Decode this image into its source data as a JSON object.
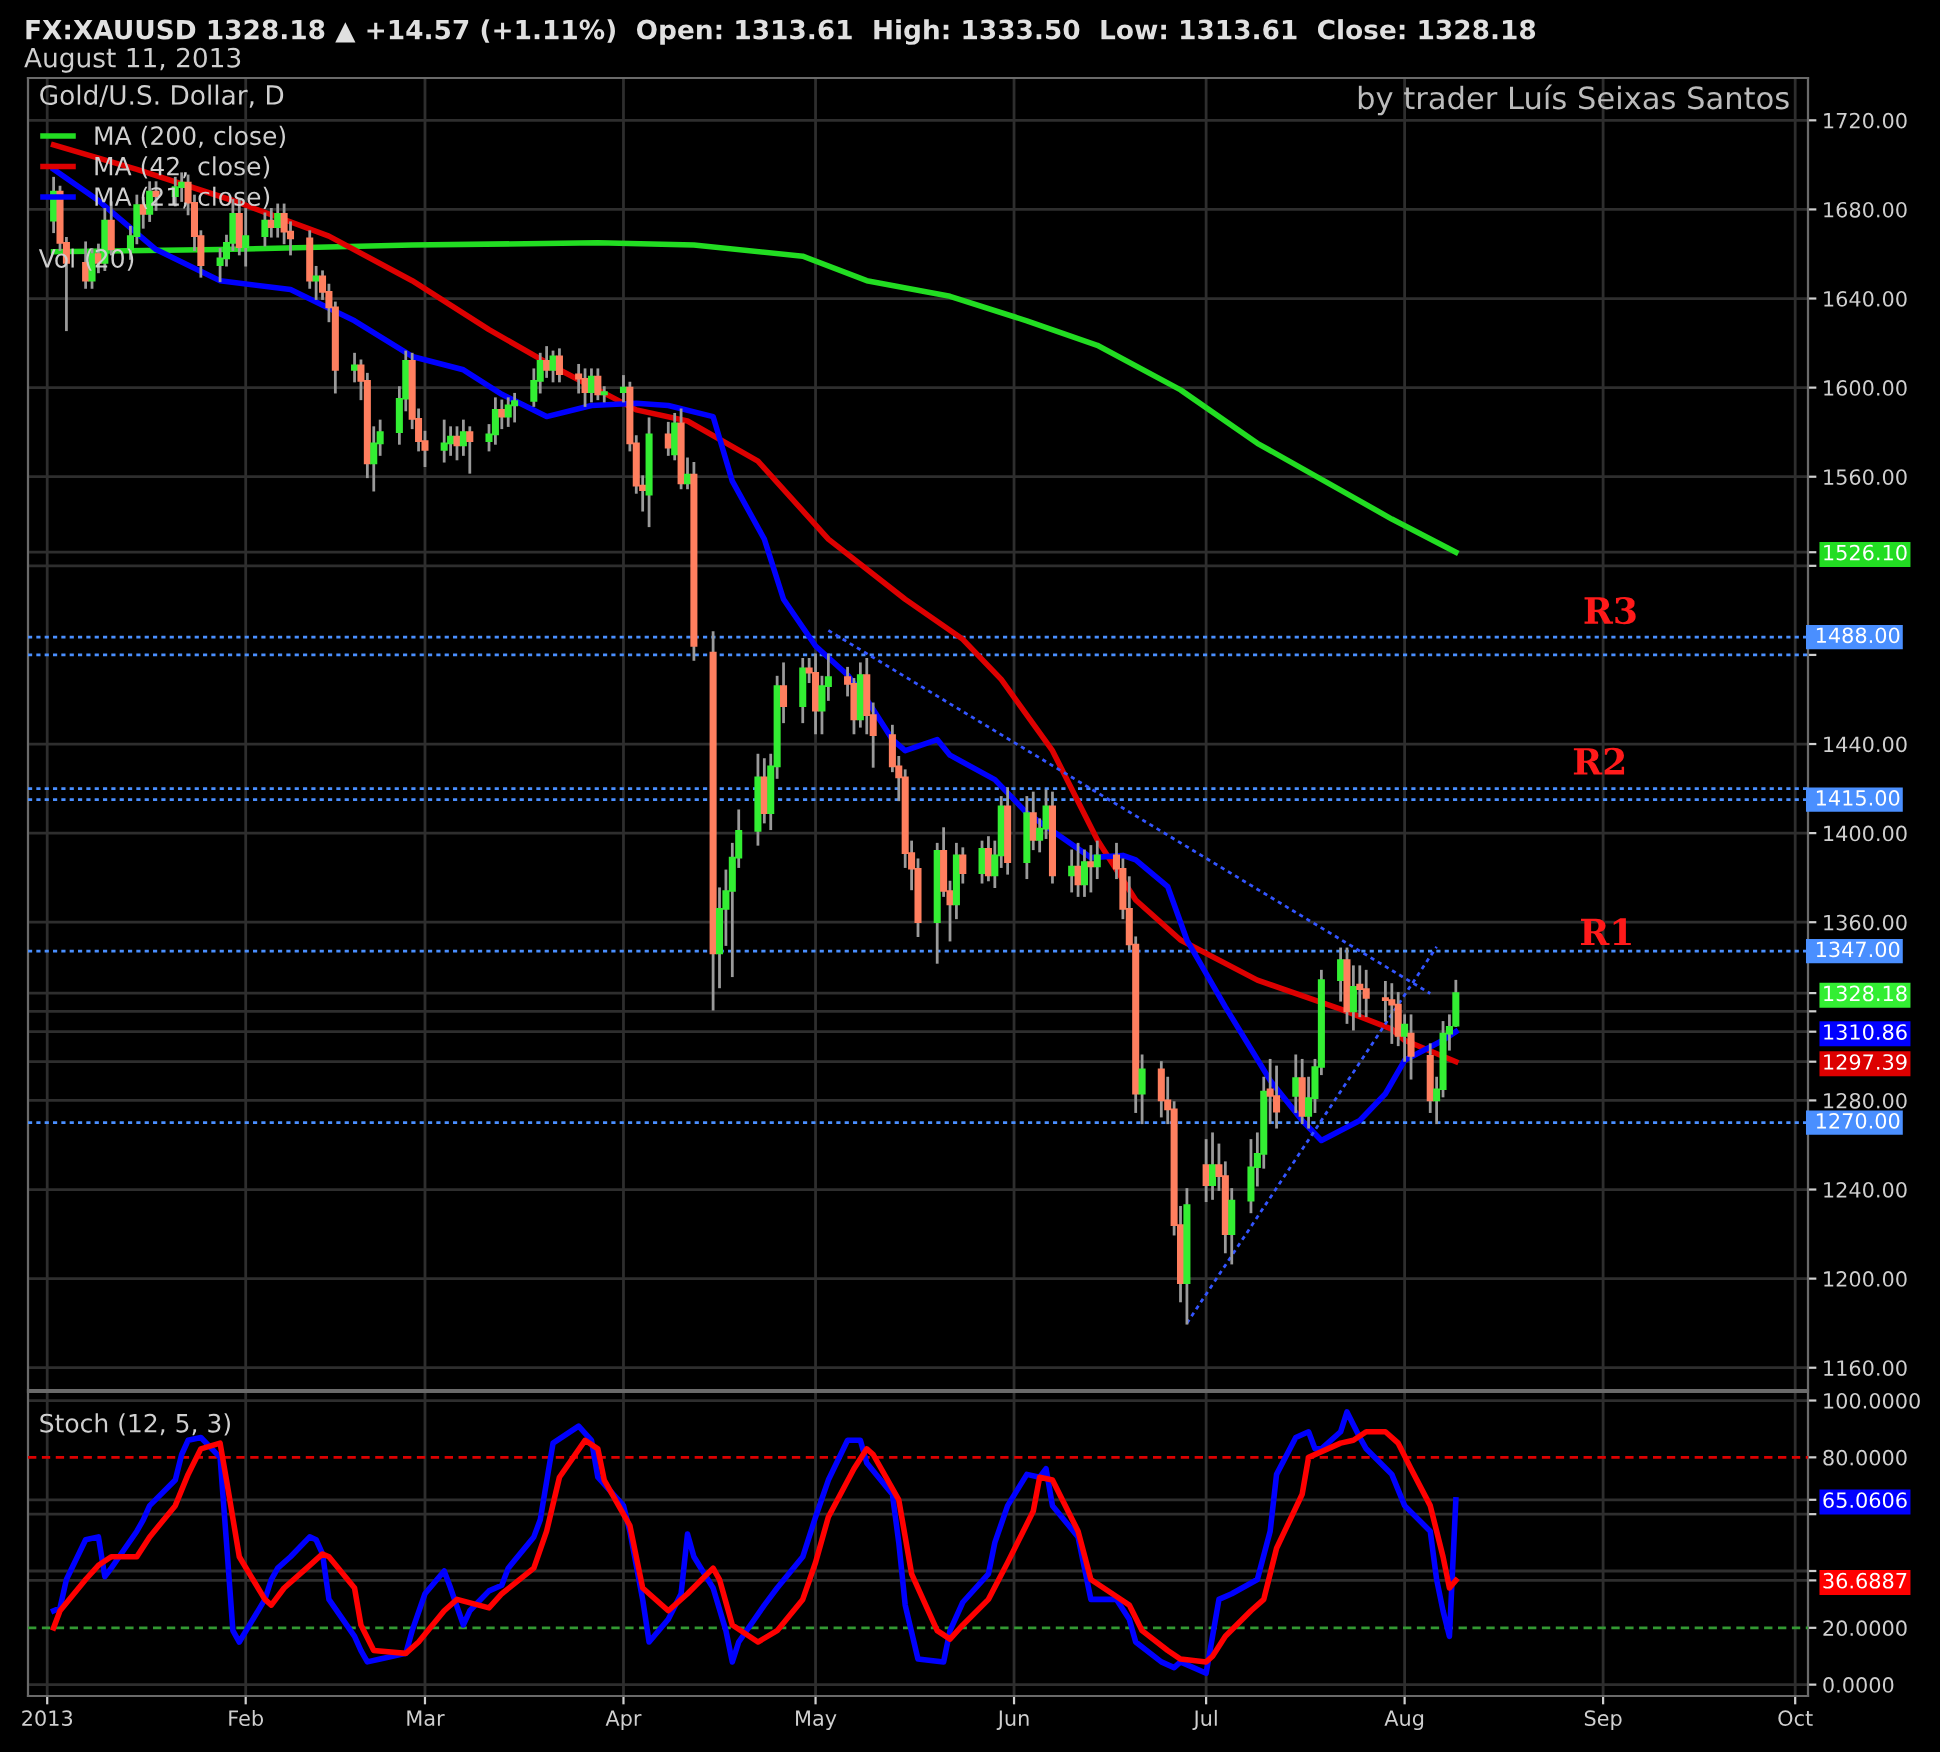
{
  "chart_data": [
    {
      "type": "candlestick",
      "title": "FX:XAUUSD 1328.18 ▲ +14.57 (+1.11%)  Open: 1313.61  High: 1333.50  Low: 1313.61  Close: 1328.18",
      "subtitle": "August 11, 2013",
      "annotations": [
        "Gold/U.S. Dollar, D",
        "by trader Luís Seixas Santos",
        "Vol (20)",
        "R3",
        "R2",
        "R1"
      ],
      "x": [
        "2013-01-02",
        "2013-01-03",
        "2013-01-04",
        "2013-01-07",
        "2013-01-08",
        "2013-01-09",
        "2013-01-10",
        "2013-01-11",
        "2013-01-14",
        "2013-01-15",
        "2013-01-16",
        "2013-01-17",
        "2013-01-18",
        "2013-01-21",
        "2013-01-22",
        "2013-01-23",
        "2013-01-24",
        "2013-01-25",
        "2013-01-28",
        "2013-01-29",
        "2013-01-30",
        "2013-01-31",
        "2013-02-01",
        "2013-02-04",
        "2013-02-05",
        "2013-02-06",
        "2013-02-07",
        "2013-02-08",
        "2013-02-11",
        "2013-02-12",
        "2013-02-13",
        "2013-02-14",
        "2013-02-15",
        "2013-02-18",
        "2013-02-19",
        "2013-02-20",
        "2013-02-21",
        "2013-02-22",
        "2013-02-25",
        "2013-02-26",
        "2013-02-27",
        "2013-02-28",
        "2013-03-01",
        "2013-03-04",
        "2013-03-05",
        "2013-03-06",
        "2013-03-07",
        "2013-03-08",
        "2013-03-11",
        "2013-03-12",
        "2013-03-13",
        "2013-03-14",
        "2013-03-15",
        "2013-03-18",
        "2013-03-19",
        "2013-03-20",
        "2013-03-21",
        "2013-03-22",
        "2013-03-25",
        "2013-03-26",
        "2013-03-27",
        "2013-03-28",
        "2013-03-29",
        "2013-04-01",
        "2013-04-02",
        "2013-04-03",
        "2013-04-04",
        "2013-04-05",
        "2013-04-08",
        "2013-04-09",
        "2013-04-10",
        "2013-04-11",
        "2013-04-12",
        "2013-04-15",
        "2013-04-16",
        "2013-04-17",
        "2013-04-18",
        "2013-04-19",
        "2013-04-22",
        "2013-04-23",
        "2013-04-24",
        "2013-04-25",
        "2013-04-26",
        "2013-04-29",
        "2013-04-30",
        "2013-05-01",
        "2013-05-02",
        "2013-05-03",
        "2013-05-06",
        "2013-05-07",
        "2013-05-08",
        "2013-05-09",
        "2013-05-10",
        "2013-05-13",
        "2013-05-14",
        "2013-05-15",
        "2013-05-16",
        "2013-05-17",
        "2013-05-20",
        "2013-05-21",
        "2013-05-22",
        "2013-05-23",
        "2013-05-24",
        "2013-05-27",
        "2013-05-28",
        "2013-05-29",
        "2013-05-30",
        "2013-05-31",
        "2013-06-03",
        "2013-06-04",
        "2013-06-05",
        "2013-06-06",
        "2013-06-07",
        "2013-06-10",
        "2013-06-11",
        "2013-06-12",
        "2013-06-13",
        "2013-06-14",
        "2013-06-17",
        "2013-06-18",
        "2013-06-19",
        "2013-06-20",
        "2013-06-21",
        "2013-06-24",
        "2013-06-25",
        "2013-06-26",
        "2013-06-27",
        "2013-06-28",
        "2013-07-01",
        "2013-07-02",
        "2013-07-03",
        "2013-07-04",
        "2013-07-05",
        "2013-07-08",
        "2013-07-09",
        "2013-07-10",
        "2013-07-11",
        "2013-07-12",
        "2013-07-15",
        "2013-07-16",
        "2013-07-17",
        "2013-07-18",
        "2013-07-19",
        "2013-07-22",
        "2013-07-23",
        "2013-07-24",
        "2013-07-25",
        "2013-07-26",
        "2013-07-29",
        "2013-07-30",
        "2013-07-31",
        "2013-08-01",
        "2013-08-02",
        "2013-08-05",
        "2013-08-06",
        "2013-08-07",
        "2013-08-08",
        "2013-08-09"
      ],
      "ohlc": [
        [
          1675,
          1694,
          1670,
          1688
        ],
        [
          1688,
          1690,
          1662,
          1665
        ],
        [
          1665,
          1667,
          1626,
          1656
        ],
        [
          1656,
          1665,
          1645,
          1648
        ],
        [
          1648,
          1662,
          1645,
          1660
        ],
        [
          1660,
          1664,
          1652,
          1656
        ],
        [
          1656,
          1680,
          1653,
          1675
        ],
        [
          1675,
          1683,
          1660,
          1662
        ],
        [
          1662,
          1672,
          1658,
          1668
        ],
        [
          1668,
          1686,
          1665,
          1682
        ],
        [
          1682,
          1685,
          1672,
          1678
        ],
        [
          1678,
          1692,
          1675,
          1688
        ],
        [
          1688,
          1692,
          1680,
          1686
        ],
        [
          1686,
          1694,
          1682,
          1690
        ],
        [
          1690,
          1696,
          1684,
          1692
        ],
        [
          1692,
          1695,
          1678,
          1683
        ],
        [
          1683,
          1686,
          1662,
          1668
        ],
        [
          1668,
          1670,
          1650,
          1655
        ],
        [
          1655,
          1662,
          1648,
          1658
        ],
        [
          1658,
          1668,
          1655,
          1665
        ],
        [
          1665,
          1684,
          1662,
          1678
        ],
        [
          1678,
          1684,
          1660,
          1663
        ],
        [
          1663,
          1680,
          1655,
          1668
        ],
        [
          1668,
          1678,
          1664,
          1675
        ],
        [
          1675,
          1680,
          1668,
          1672
        ],
        [
          1672,
          1682,
          1668,
          1678
        ],
        [
          1678,
          1682,
          1665,
          1670
        ],
        [
          1670,
          1674,
          1660,
          1667
        ],
        [
          1667,
          1670,
          1645,
          1648
        ],
        [
          1648,
          1654,
          1640,
          1650
        ],
        [
          1650,
          1652,
          1640,
          1643
        ],
        [
          1643,
          1646,
          1630,
          1636
        ],
        [
          1636,
          1638,
          1598,
          1608
        ],
        [
          1608,
          1615,
          1603,
          1610
        ],
        [
          1610,
          1612,
          1595,
          1603
        ],
        [
          1603,
          1606,
          1560,
          1566
        ],
        [
          1566,
          1582,
          1554,
          1575
        ],
        [
          1575,
          1585,
          1570,
          1580
        ],
        [
          1580,
          1600,
          1575,
          1595
        ],
        [
          1595,
          1616,
          1590,
          1612
        ],
        [
          1612,
          1615,
          1582,
          1586
        ],
        [
          1586,
          1590,
          1572,
          1576
        ],
        [
          1576,
          1580,
          1565,
          1572
        ],
        [
          1572,
          1585,
          1567,
          1575
        ],
        [
          1575,
          1582,
          1570,
          1578
        ],
        [
          1578,
          1582,
          1568,
          1574
        ],
        [
          1574,
          1585,
          1570,
          1580
        ],
        [
          1580,
          1582,
          1562,
          1576
        ],
        [
          1576,
          1583,
          1572,
          1579
        ],
        [
          1579,
          1595,
          1575,
          1590
        ],
        [
          1590,
          1594,
          1582,
          1587
        ],
        [
          1587,
          1595,
          1583,
          1592
        ],
        [
          1592,
          1597,
          1585,
          1594
        ],
        [
          1594,
          1608,
          1592,
          1603
        ],
        [
          1603,
          1615,
          1598,
          1612
        ],
        [
          1612,
          1618,
          1605,
          1608
        ],
        [
          1608,
          1616,
          1603,
          1614
        ],
        [
          1614,
          1617,
          1603,
          1606
        ],
        [
          1606,
          1610,
          1598,
          1604
        ],
        [
          1604,
          1608,
          1592,
          1598
        ],
        [
          1598,
          1608,
          1594,
          1605
        ],
        [
          1605,
          1608,
          1595,
          1597
        ],
        [
          1597,
          1600,
          1594,
          1598
        ],
        [
          1598,
          1605,
          1594,
          1600
        ],
        [
          1600,
          1602,
          1572,
          1575
        ],
        [
          1575,
          1578,
          1553,
          1556
        ],
        [
          1556,
          1560,
          1545,
          1554
        ],
        [
          1552,
          1586,
          1538,
          1579
        ],
        [
          1579,
          1584,
          1570,
          1573
        ],
        [
          1570,
          1588,
          1568,
          1584
        ],
        [
          1584,
          1590,
          1555,
          1557
        ],
        [
          1557,
          1568,
          1555,
          1561
        ],
        [
          1561,
          1566,
          1478,
          1484
        ],
        [
          1481,
          1490,
          1321,
          1346
        ],
        [
          1346,
          1375,
          1331,
          1366
        ],
        [
          1366,
          1383,
          1350,
          1374
        ],
        [
          1374,
          1395,
          1336,
          1389
        ],
        [
          1389,
          1410,
          1385,
          1401
        ],
        [
          1401,
          1435,
          1395,
          1425
        ],
        [
          1425,
          1433,
          1405,
          1409
        ],
        [
          1409,
          1435,
          1402,
          1430
        ],
        [
          1430,
          1470,
          1425,
          1466
        ],
        [
          1466,
          1476,
          1450,
          1457
        ],
        [
          1457,
          1478,
          1450,
          1474
        ],
        [
          1474,
          1478,
          1468,
          1472
        ],
        [
          1472,
          1480,
          1445,
          1455
        ],
        [
          1455,
          1470,
          1445,
          1466
        ],
        [
          1466,
          1480,
          1460,
          1470
        ],
        [
          1470,
          1474,
          1462,
          1467
        ],
        [
          1467,
          1469,
          1445,
          1451
        ],
        [
          1451,
          1476,
          1448,
          1471
        ],
        [
          1471,
          1478,
          1445,
          1453
        ],
        [
          1453,
          1458,
          1430,
          1444
        ],
        [
          1444,
          1448,
          1428,
          1430
        ],
        [
          1430,
          1434,
          1415,
          1425
        ],
        [
          1425,
          1428,
          1385,
          1391
        ],
        [
          1391,
          1396,
          1375,
          1384
        ],
        [
          1384,
          1388,
          1354,
          1360
        ],
        [
          1360,
          1395,
          1342,
          1392
        ],
        [
          1392,
          1402,
          1372,
          1374
        ],
        [
          1374,
          1378,
          1352,
          1368
        ],
        [
          1368,
          1395,
          1362,
          1390
        ],
        [
          1390,
          1393,
          1378,
          1382
        ],
        [
          1382,
          1396,
          1378,
          1393
        ],
        [
          1393,
          1398,
          1379,
          1381
        ],
        [
          1381,
          1396,
          1376,
          1390
        ],
        [
          1390,
          1416,
          1385,
          1412
        ],
        [
          1412,
          1420,
          1382,
          1387
        ],
        [
          1387,
          1416,
          1380,
          1409
        ],
        [
          1409,
          1418,
          1393,
          1397
        ],
        [
          1397,
          1406,
          1392,
          1402
        ],
        [
          1402,
          1419,
          1398,
          1412
        ],
        [
          1412,
          1418,
          1378,
          1381
        ],
        [
          1381,
          1392,
          1374,
          1385
        ],
        [
          1385,
          1395,
          1372,
          1377
        ],
        [
          1377,
          1392,
          1372,
          1387
        ],
        [
          1387,
          1394,
          1374,
          1385
        ],
        [
          1385,
          1396,
          1380,
          1390
        ],
        [
          1390,
          1395,
          1380,
          1384
        ],
        [
          1384,
          1388,
          1362,
          1366
        ],
        [
          1366,
          1380,
          1348,
          1350
        ],
        [
          1350,
          1353,
          1275,
          1283
        ],
        [
          1283,
          1300,
          1270,
          1294
        ],
        [
          1294,
          1297,
          1273,
          1280
        ],
        [
          1280,
          1290,
          1270,
          1276
        ],
        [
          1276,
          1279,
          1220,
          1224
        ],
        [
          1224,
          1232,
          1190,
          1198
        ],
        [
          1198,
          1240,
          1180,
          1233
        ],
        [
          1251,
          1262,
          1235,
          1242
        ],
        [
          1242,
          1265,
          1236,
          1251
        ],
        [
          1251,
          1260,
          1240,
          1246
        ],
        [
          1246,
          1252,
          1212,
          1220
        ],
        [
          1220,
          1240,
          1207,
          1235
        ],
        [
          1235,
          1262,
          1230,
          1250
        ],
        [
          1250,
          1265,
          1242,
          1256
        ],
        [
          1256,
          1290,
          1250,
          1284
        ],
        [
          1285,
          1298,
          1270,
          1282
        ],
        [
          1282,
          1295,
          1268,
          1275
        ],
        [
          1282,
          1300,
          1275,
          1290
        ],
        [
          1290,
          1298,
          1270,
          1273
        ],
        [
          1273,
          1290,
          1268,
          1281
        ],
        [
          1281,
          1298,
          1275,
          1295
        ],
        [
          1295,
          1338,
          1292,
          1334
        ],
        [
          1334,
          1348,
          1325,
          1343
        ],
        [
          1343,
          1348,
          1315,
          1320
        ],
        [
          1320,
          1340,
          1312,
          1331
        ],
        [
          1332,
          1340,
          1318,
          1330
        ],
        [
          1330,
          1338,
          1318,
          1326
        ],
        [
          1326,
          1333,
          1316,
          1325
        ],
        [
          1325,
          1332,
          1306,
          1323
        ],
        [
          1323,
          1328,
          1305,
          1309
        ],
        [
          1309,
          1318,
          1298,
          1314
        ],
        [
          1310,
          1318,
          1290,
          1300
        ],
        [
          1300,
          1305,
          1275,
          1280
        ],
        [
          1280,
          1290,
          1270,
          1285
        ],
        [
          1285,
          1315,
          1282,
          1310
        ],
        [
          1310,
          1318,
          1303,
          1313
        ],
        [
          1313.61,
          1333.5,
          1313.61,
          1328.18
        ]
      ],
      "colors": [
        "#33ee33",
        "#ff7f5f",
        "#ff7f5f",
        "#ff7f5f",
        "#33ee33",
        "#ff7f5f",
        "#33ee33",
        "#ff7f5f",
        "#33ee33",
        "#33ee33",
        "#ff7f5f",
        "#33ee33",
        "#ff7f5f",
        "#33ee33",
        "#33ee33",
        "#ff7f5f",
        "#ff7f5f",
        "#ff7f5f",
        "#33ee33",
        "#33ee33",
        "#33ee33",
        "#ff7f5f",
        "#33ee33",
        "#33ee33",
        "#ff7f5f",
        "#33ee33",
        "#ff7f5f",
        "#ff7f5f",
        "#ff7f5f",
        "#33ee33",
        "#ff7f5f",
        "#ff7f5f",
        "#ff7f5f",
        "#33ee33",
        "#ff7f5f",
        "#ff7f5f",
        "#33ee33",
        "#33ee33",
        "#33ee33",
        "#33ee33",
        "#ff7f5f",
        "#ff7f5f",
        "#ff7f5f",
        "#33ee33",
        "#33ee33",
        "#ff7f5f",
        "#33ee33",
        "#ff7f5f",
        "#33ee33",
        "#33ee33",
        "#ff7f5f",
        "#33ee33",
        "#33ee33",
        "#33ee33",
        "#33ee33",
        "#ff7f5f",
        "#33ee33",
        "#ff7f5f",
        "#ff7f5f",
        "#ff7f5f",
        "#33ee33",
        "#ff7f5f",
        "#33ee33",
        "#33ee33",
        "#ff7f5f",
        "#ff7f5f",
        "#ff7f5f",
        "#33ee33",
        "#ff7f5f",
        "#33ee33",
        "#ff7f5f",
        "#33ee33",
        "#ff7f5f",
        "#ff7f5f",
        "#33ee33",
        "#33ee33",
        "#33ee33",
        "#33ee33",
        "#33ee33",
        "#ff7f5f",
        "#33ee33",
        "#33ee33",
        "#ff7f5f",
        "#33ee33",
        "#ff7f5f",
        "#ff7f5f",
        "#33ee33",
        "#33ee33",
        "#ff7f5f",
        "#ff7f5f",
        "#33ee33",
        "#ff7f5f",
        "#ff7f5f",
        "#ff7f5f",
        "#ff7f5f",
        "#ff7f5f",
        "#ff7f5f",
        "#ff7f5f",
        "#33ee33",
        "#ff7f5f",
        "#ff7f5f",
        "#33ee33",
        "#ff7f5f",
        "#33ee33",
        "#ff7f5f",
        "#33ee33",
        "#33ee33",
        "#ff7f5f",
        "#33ee33",
        "#ff7f5f",
        "#33ee33",
        "#33ee33",
        "#ff7f5f",
        "#33ee33",
        "#ff7f5f",
        "#33ee33",
        "#ff7f5f",
        "#33ee33",
        "#ff7f5f",
        "#ff7f5f",
        "#ff7f5f",
        "#ff7f5f",
        "#33ee33",
        "#ff7f5f",
        "#ff7f5f",
        "#ff7f5f",
        "#ff7f5f",
        "#33ee33",
        "#ff7f5f",
        "#33ee33",
        "#ff7f5f",
        "#ff7f5f",
        "#33ee33",
        "#33ee33",
        "#33ee33",
        "#33ee33",
        "#ff7f5f",
        "#ff7f5f",
        "#33ee33",
        "#ff7f5f",
        "#33ee33",
        "#33ee33",
        "#33ee33",
        "#33ee33",
        "#ff7f5f",
        "#33ee33",
        "#ff7f5f",
        "#ff7f5f",
        "#ff7f5f",
        "#ff7f5f",
        "#ff7f5f",
        "#33ee33",
        "#ff7f5f",
        "#ff7f5f",
        "#33ee33",
        "#33ee33",
        "#33ee33",
        "#33ee33"
      ],
      "series": [
        {
          "type": "line",
          "name": "MA (200, close)",
          "color": "#22dd22",
          "x": [
            "2013-01-02",
            "2013-01-28",
            "2013-02-27",
            "2013-03-28",
            "2013-04-12",
            "2013-04-29",
            "2013-05-09",
            "2013-05-22",
            "2013-06-03",
            "2013-06-14",
            "2013-06-27",
            "2013-07-09",
            "2013-07-22",
            "2013-07-30",
            "2013-08-09"
          ],
          "values": [
            1661,
            1662,
            1664,
            1665,
            1664,
            1659,
            1648,
            1641,
            1630,
            1619,
            1599,
            1575,
            1554,
            1541,
            1526.1
          ]
        },
        {
          "type": "line",
          "name": "MA (42, close)",
          "color": "#dd0000",
          "x": [
            "2013-01-02",
            "2013-01-15",
            "2013-01-30",
            "2013-02-14",
            "2013-02-27",
            "2013-03-11",
            "2013-03-22",
            "2013-04-03",
            "2013-04-11",
            "2013-04-22",
            "2013-05-03",
            "2013-05-15",
            "2013-05-24",
            "2013-05-30",
            "2013-06-07",
            "2013-06-14",
            "2013-06-20",
            "2013-06-27",
            "2013-07-09",
            "2013-07-22",
            "2013-07-30",
            "2013-08-01",
            "2013-08-09"
          ],
          "values": [
            1709,
            1698,
            1684,
            1668,
            1648,
            1626,
            1608,
            1590,
            1585,
            1567,
            1532,
            1505,
            1487,
            1469,
            1437,
            1397,
            1370,
            1352,
            1334,
            1321,
            1312,
            1307,
            1297.39
          ]
        },
        {
          "type": "line",
          "name": "MA (21, close)",
          "color": "#0000ff",
          "x": [
            "2013-01-02",
            "2013-01-09",
            "2013-01-18",
            "2013-01-28",
            "2013-02-08",
            "2013-02-18",
            "2013-02-27",
            "2013-03-07",
            "2013-03-13",
            "2013-03-20",
            "2013-03-27",
            "2013-04-03",
            "2013-04-08",
            "2013-04-15",
            "2013-04-18",
            "2013-04-23",
            "2013-04-26",
            "2013-05-01",
            "2013-05-06",
            "2013-05-09",
            "2013-05-13",
            "2013-05-15",
            "2013-05-20",
            "2013-05-22",
            "2013-05-29",
            "2013-06-03",
            "2013-06-10",
            "2013-06-13",
            "2013-06-18",
            "2013-06-20",
            "2013-06-25",
            "2013-06-28",
            "2013-07-04",
            "2013-07-11",
            "2013-07-16",
            "2013-07-19",
            "2013-07-25",
            "2013-07-29",
            "2013-08-01",
            "2013-08-07",
            "2013-08-09"
          ],
          "values": [
            1698,
            1684,
            1662,
            1648,
            1644,
            1630,
            1614,
            1608,
            1597,
            1587,
            1592,
            1593,
            1592,
            1587,
            1558,
            1532,
            1505,
            1484,
            1471,
            1460,
            1442,
            1437,
            1442,
            1435,
            1424,
            1409,
            1395,
            1389,
            1390,
            1388,
            1376,
            1352,
            1322,
            1289,
            1271,
            1262,
            1271,
            1283,
            1298,
            1307,
            1310.86
          ]
        },
        {
          "type": "line",
          "color": "#3355ff",
          "line_style": "dotted",
          "x": [
            "2013-05-03",
            "2013-08-05"
          ],
          "values": [
            1491,
            1328
          ]
        },
        {
          "type": "line",
          "color": "#3355ff",
          "line_style": "dotted",
          "x": [
            "2013-06-28",
            "2013-08-06"
          ],
          "values": [
            1180,
            1349
          ]
        }
      ],
      "ref_lines": [
        {
          "axis": "y",
          "value": 1488,
          "label": "1488.00",
          "color": "#4a8fff",
          "line_style": "dotted"
        },
        {
          "axis": "y",
          "value": 1480,
          "color": "#4a8fff",
          "line_style": "dotted"
        },
        {
          "axis": "y",
          "value": 1420,
          "color": "#4a8fff",
          "line_style": "dotted"
        },
        {
          "axis": "y",
          "value": 1415,
          "label": "1415.00",
          "color": "#4a8fff",
          "line_style": "dotted"
        },
        {
          "axis": "y",
          "value": 1347,
          "label": "1347.00",
          "color": "#4a8fff",
          "line_style": "dotted"
        },
        {
          "axis": "y",
          "value": 1270,
          "label": "1270.00",
          "color": "#4a8fff",
          "line_style": "dotted"
        }
      ],
      "xlim": [
        "2012-12-29",
        "2013-10-03"
      ],
      "xticks": [
        {
          "value": "2013-01-01",
          "label": null
        },
        {
          "value": "2013-02-01",
          "label": null
        },
        {
          "value": "2013-03-01",
          "label": null
        },
        {
          "value": "2013-04-01",
          "label": null
        },
        {
          "value": "2013-05-01",
          "label": null
        },
        {
          "value": "2013-06-01",
          "label": null
        },
        {
          "value": "2013-07-01",
          "label": null
        },
        {
          "value": "2013-08-01",
          "label": null
        },
        {
          "value": "2013-09-01",
          "label": null
        },
        {
          "value": "2013-10-01",
          "label": null
        }
      ],
      "ylim": [
        1150,
        1739
      ],
      "yticks": [
        {
          "value": 1160,
          "label": "1160.00"
        },
        {
          "value": 1200,
          "label": "1200.00"
        },
        {
          "value": 1240,
          "label": "1240.00"
        },
        {
          "value": 1280,
          "label": "1280.00"
        },
        {
          "value": 1297.39,
          "label": "1297.39"
        },
        {
          "value": 1310.86,
          "label": "1310.86"
        },
        {
          "value": 1320,
          "label": null
        },
        {
          "value": 1328.18,
          "label": "1328.18"
        },
        {
          "value": 1360,
          "label": "1360.00"
        },
        {
          "value": 1400,
          "label": "1400.00"
        },
        {
          "value": 1440,
          "label": "1440.00"
        },
        {
          "value": 1480,
          "label": null
        },
        {
          "value": 1520,
          "label": null
        },
        {
          "value": 1526.1,
          "label": "1526.10"
        },
        {
          "value": 1560,
          "label": "1560.00"
        },
        {
          "value": 1600,
          "label": "1600.00"
        },
        {
          "value": 1640,
          "label": "1640.00"
        },
        {
          "value": 1680,
          "label": "1680.00"
        },
        {
          "value": 1720,
          "label": "1720.00"
        }
      ],
      "tick_labels": "y",
      "grid": true,
      "legend": "top left"
    },
    {
      "type": "line",
      "title": "Stoch (12, 5, 3)",
      "series": [
        {
          "color": "#0000ff",
          "x": [
            "2013-01-02",
            "2013-01-03",
            "2013-01-04",
            "2013-01-07",
            "2013-01-09",
            "2013-01-10",
            "2013-01-11",
            "2013-01-15",
            "2013-01-16",
            "2013-01-17",
            "2013-01-21",
            "2013-01-22",
            "2013-01-23",
            "2013-01-25",
            "2013-01-28",
            "2013-01-29",
            "2013-01-30",
            "2013-01-31",
            "2013-02-04",
            "2013-02-05",
            "2013-02-06",
            "2013-02-08",
            "2013-02-11",
            "2013-02-12",
            "2013-02-13",
            "2013-02-14",
            "2013-02-18",
            "2013-02-19",
            "2013-02-20",
            "2013-02-22",
            "2013-02-26",
            "2013-02-27",
            "2013-03-01",
            "2013-03-04",
            "2013-03-05",
            "2013-03-07",
            "2013-03-08",
            "2013-03-11",
            "2013-03-13",
            "2013-03-14",
            "2013-03-18",
            "2013-03-19",
            "2013-03-21",
            "2013-03-25",
            "2013-03-27",
            "2013-03-28",
            "2013-04-01",
            "2013-04-02",
            "2013-04-04",
            "2013-04-05",
            "2013-04-08",
            "2013-04-10",
            "2013-04-11",
            "2013-04-12",
            "2013-04-15",
            "2013-04-17",
            "2013-04-18",
            "2013-04-19",
            "2013-04-23",
            "2013-04-25",
            "2013-04-29",
            "2013-05-01",
            "2013-05-03",
            "2013-05-06",
            "2013-05-08",
            "2013-05-09",
            "2013-05-13",
            "2013-05-14",
            "2013-05-15",
            "2013-05-17",
            "2013-05-21",
            "2013-05-22",
            "2013-05-24",
            "2013-05-28",
            "2013-05-29",
            "2013-05-31",
            "2013-06-03",
            "2013-06-05",
            "2013-06-06",
            "2013-06-07",
            "2013-06-11",
            "2013-06-12",
            "2013-06-13",
            "2013-06-17",
            "2013-06-19",
            "2013-06-20",
            "2013-06-24",
            "2013-06-26",
            "2013-06-27",
            "2013-07-01",
            "2013-07-02",
            "2013-07-03",
            "2013-07-05",
            "2013-07-09",
            "2013-07-11",
            "2013-07-12",
            "2013-07-15",
            "2013-07-17",
            "2013-07-18",
            "2013-07-19",
            "2013-07-22",
            "2013-07-23",
            "2013-07-25",
            "2013-07-26",
            "2013-07-30",
            "2013-08-01",
            "2013-08-05",
            "2013-08-06",
            "2013-08-07",
            "2013-08-08",
            "2013-08-09"
          ],
          "values": [
            26,
            27,
            37,
            51,
            52,
            38,
            41,
            54,
            58,
            63,
            72,
            81,
            86,
            87,
            80,
            50,
            19,
            15,
            30,
            37,
            41,
            45,
            52,
            51,
            46,
            30,
            17,
            12,
            8,
            9,
            11,
            19,
            32,
            40,
            34,
            21,
            26,
            33,
            35,
            41,
            52,
            58,
            85,
            91,
            86,
            73,
            63,
            54,
            30,
            15,
            23,
            32,
            53,
            45,
            34,
            19,
            8,
            15,
            28,
            34,
            45,
            59,
            72,
            86,
            86,
            78,
            67,
            50,
            28,
            9,
            8,
            19,
            29,
            39,
            50,
            63,
            74,
            73,
            76,
            63,
            52,
            41,
            30,
            30,
            23,
            15,
            8,
            6,
            8,
            4,
            17,
            30,
            32,
            37,
            54,
            74,
            87,
            89,
            83,
            83,
            89,
            96,
            87,
            83,
            74,
            63,
            54,
            37,
            26,
            17,
            65.0606
          ]
        },
        {
          "color": "#ff0000",
          "x": [
            "2013-01-02",
            "2013-01-03",
            "2013-01-07",
            "2013-01-09",
            "2013-01-11",
            "2013-01-15",
            "2013-01-17",
            "2013-01-21",
            "2013-01-23",
            "2013-01-25",
            "2013-01-28",
            "2013-01-29",
            "2013-01-31",
            "2013-02-04",
            "2013-02-05",
            "2013-02-07",
            "2013-02-11",
            "2013-02-13",
            "2013-02-14",
            "2013-02-18",
            "2013-02-19",
            "2013-02-21",
            "2013-02-26",
            "2013-02-28",
            "2013-03-04",
            "2013-03-06",
            "2013-03-11",
            "2013-03-13",
            "2013-03-18",
            "2013-03-20",
            "2013-03-22",
            "2013-03-26",
            "2013-03-28",
            "2013-03-29",
            "2013-04-02",
            "2013-04-04",
            "2013-04-08",
            "2013-04-11",
            "2013-04-15",
            "2013-04-16",
            "2013-04-18",
            "2013-04-22",
            "2013-04-25",
            "2013-04-29",
            "2013-05-01",
            "2013-05-03",
            "2013-05-07",
            "2013-05-09",
            "2013-05-10",
            "2013-05-14",
            "2013-05-16",
            "2013-05-20",
            "2013-05-22",
            "2013-05-24",
            "2013-05-28",
            "2013-05-31",
            "2013-06-04",
            "2013-06-05",
            "2013-06-07",
            "2013-06-11",
            "2013-06-13",
            "2013-06-17",
            "2013-06-19",
            "2013-06-21",
            "2013-06-25",
            "2013-06-27",
            "2013-07-01",
            "2013-07-02",
            "2013-07-04",
            "2013-07-08",
            "2013-07-10",
            "2013-07-12",
            "2013-07-16",
            "2013-07-17",
            "2013-07-22",
            "2013-07-24",
            "2013-07-26",
            "2013-07-29",
            "2013-07-31",
            "2013-08-02",
            "2013-08-05",
            "2013-08-07",
            "2013-08-08",
            "2013-08-09"
          ],
          "values": [
            20,
            26,
            37,
            42,
            45,
            45,
            52,
            63,
            74,
            83,
            85,
            72,
            45,
            30,
            28,
            34,
            42,
            46,
            45,
            34,
            21,
            12,
            11,
            15,
            26,
            30,
            27,
            32,
            41,
            54,
            73,
            86,
            83,
            72,
            56,
            34,
            26,
            32,
            41,
            37,
            21,
            15,
            19,
            30,
            43,
            59,
            76,
            83,
            81,
            65,
            39,
            19,
            16,
            21,
            30,
            43,
            61,
            73,
            72,
            54,
            37,
            31,
            28,
            19,
            12,
            9,
            8,
            10,
            17,
            26,
            30,
            48,
            67,
            80,
            85,
            86,
            89,
            89,
            85,
            76,
            63,
            45,
            34,
            36.6887
          ]
        }
      ],
      "ref_lines": [
        {
          "axis": "y",
          "value": 80,
          "color": "#dd0000",
          "line_style": "dashed"
        },
        {
          "axis": "y",
          "value": 20,
          "color": "#339933",
          "line_style": "dashed"
        }
      ],
      "xlim": [
        "2012-12-29",
        "2013-10-03"
      ],
      "xticks": [
        {
          "value": "2013-01-01",
          "label": "2013"
        },
        {
          "value": "2013-02-01",
          "label": "Feb"
        },
        {
          "value": "2013-03-01",
          "label": "Mar"
        },
        {
          "value": "2013-04-01",
          "label": "Apr"
        },
        {
          "value": "2013-05-01",
          "label": "May"
        },
        {
          "value": "2013-06-01",
          "label": "Jun"
        },
        {
          "value": "2013-07-01",
          "label": "Jul"
        },
        {
          "value": "2013-08-01",
          "label": "Aug"
        },
        {
          "value": "2013-09-01",
          "label": "Sep"
        },
        {
          "value": "2013-10-01",
          "label": "Oct"
        }
      ],
      "ylim": [
        -4,
        103
      ],
      "yticks": [
        {
          "value": 0,
          "label": "0.0000"
        },
        {
          "value": 20,
          "label": "20.0000"
        },
        {
          "value": 36.6887,
          "label": "36.6887"
        },
        {
          "value": 40,
          "label": null
        },
        {
          "value": 60,
          "label": null
        },
        {
          "value": 65.0606,
          "label": "65.0606"
        },
        {
          "value": 80,
          "label": "80.0000"
        },
        {
          "value": 100,
          "label": "100.0000"
        }
      ],
      "grid": true
    }
  ]
}
